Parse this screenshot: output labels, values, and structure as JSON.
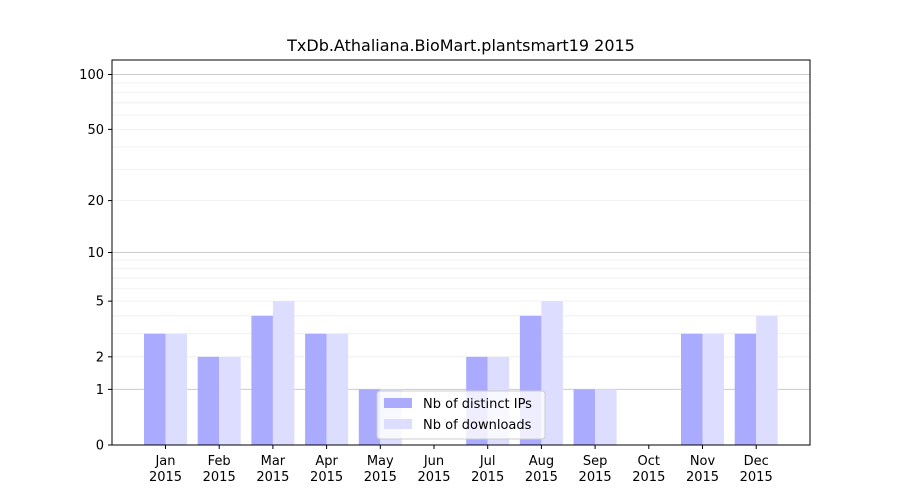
{
  "chart_data": {
    "type": "bar",
    "title": "TxDb.Athaliana.BioMart.plantsmart19 2015",
    "xlabel": "",
    "ylabel": "",
    "y_scale": "symlog",
    "ylim": [
      0,
      120
    ],
    "y_ticks": [
      0,
      1,
      2,
      5,
      10,
      20,
      50,
      100
    ],
    "grid": true,
    "legend_position": "bottom-center",
    "categories": [
      "Jan\n2015",
      "Feb\n2015",
      "Mar\n2015",
      "Apr\n2015",
      "May\n2015",
      "Jun\n2015",
      "Jul\n2015",
      "Aug\n2015",
      "Sep\n2015",
      "Oct\n2015",
      "Nov\n2015",
      "Dec\n2015"
    ],
    "category_lines": [
      [
        "Jan",
        "2015"
      ],
      [
        "Feb",
        "2015"
      ],
      [
        "Mar",
        "2015"
      ],
      [
        "Apr",
        "2015"
      ],
      [
        "May",
        "2015"
      ],
      [
        "Jun",
        "2015"
      ],
      [
        "Jul",
        "2015"
      ],
      [
        "Aug",
        "2015"
      ],
      [
        "Sep",
        "2015"
      ],
      [
        "Oct",
        "2015"
      ],
      [
        "Nov",
        "2015"
      ],
      [
        "Dec",
        "2015"
      ]
    ],
    "series": [
      {
        "name": "Nb of distinct IPs",
        "color": "#aaaaff",
        "values": [
          3,
          2,
          4,
          3,
          1,
          0,
          2,
          4,
          1,
          0,
          3,
          3
        ]
      },
      {
        "name": "Nb of downloads",
        "color": "#ddddff",
        "values": [
          3,
          2,
          5,
          3,
          1,
          0,
          2,
          5,
          1,
          0,
          3,
          4
        ]
      }
    ]
  }
}
